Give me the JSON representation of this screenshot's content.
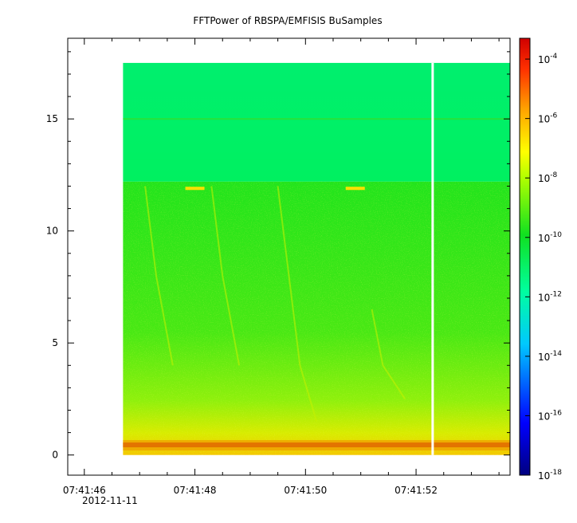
{
  "chart_data": {
    "type": "heatmap",
    "title": "FFTPower of RBSPA/EMFISIS  BuSamples",
    "xlabel": "",
    "ylabel": "",
    "date_label": "2012-11-11",
    "x_tick_labels": [
      "07:41:46",
      "07:41:48",
      "07:41:50",
      "07:41:52"
    ],
    "x_tick_seconds": [
      46,
      48,
      50,
      52
    ],
    "xlim_seconds": [
      45.7,
      53.7
    ],
    "data_xlim_seconds": [
      46.7,
      53.7
    ],
    "gap_seconds": 52.3,
    "y_ticks": [
      0,
      5,
      10,
      15
    ],
    "ylim": [
      -0.9,
      18.6
    ],
    "data_ylim": [
      0,
      17.5
    ],
    "colorbar": {
      "scale": "log",
      "range_exponent": [
        -18,
        -3.3
      ],
      "tick_exponents": [
        -18,
        -16,
        -14,
        -12,
        -10,
        -8,
        -6,
        -4
      ],
      "tick_base": "10"
    },
    "features": {
      "background_level_exponent_upper": -12.5,
      "background_level_exponent_lower": -9.8,
      "band_edge_y": 12.2,
      "line_y": 15.0,
      "low_band_exponent": -7.5,
      "strong_line_y": 0.45,
      "strong_line_exponent": -6.5
    }
  }
}
